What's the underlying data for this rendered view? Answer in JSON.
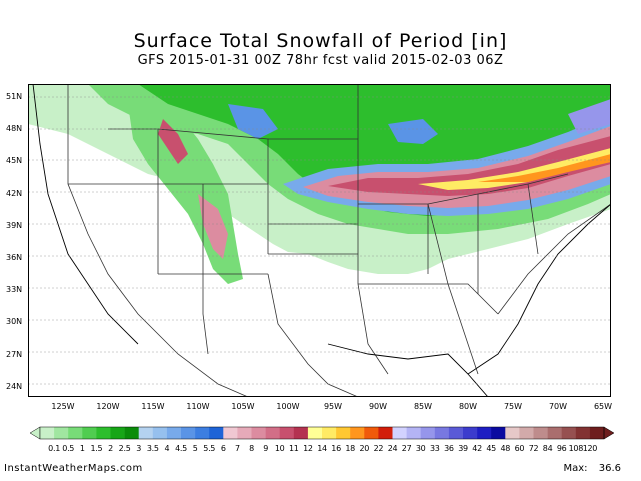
{
  "title": "Surface Total Snowfall of Period [in]",
  "subtitle": "GFS 2015-01-31 00Z 78hr fcst valid 2015-02-03 06Z",
  "lat_labels": [
    "51N",
    "48N",
    "45N",
    "42N",
    "39N",
    "36N",
    "33N",
    "30N",
    "27N",
    "24N"
  ],
  "lon_labels": [
    "125W",
    "120W",
    "115W",
    "110W",
    "105W",
    "100W",
    "95W",
    "90W",
    "85W",
    "80W",
    "75W",
    "70W",
    "65W"
  ],
  "colorbar": {
    "labels": [
      "0.1",
      "0.5",
      "1",
      "1.5",
      "2",
      "2.5",
      "3",
      "3.5",
      "4",
      "4.5",
      "5",
      "5.5",
      "6",
      "7",
      "8",
      "9",
      "10",
      "11",
      "12",
      "14",
      "16",
      "18",
      "20",
      "22",
      "24",
      "27",
      "30",
      "33",
      "36",
      "39",
      "42",
      "45",
      "48",
      "60",
      "72",
      "84",
      "96",
      "108",
      "120"
    ],
    "colors": [
      "#c8f0c8",
      "#a0e6a0",
      "#78dc78",
      "#50cd50",
      "#2dbe2d",
      "#17a617",
      "#0a8c0a",
      "#b4d2f0",
      "#96c0ee",
      "#78aaeb",
      "#5a94e6",
      "#3c7ee1",
      "#1e64d7",
      "#f0c8d2",
      "#e6aab9",
      "#dc8ca0",
      "#d26e87",
      "#c8506e",
      "#b43250",
      "#ffff96",
      "#ffeb64",
      "#ffc832",
      "#ff961e",
      "#f05a0a",
      "#d21e0a",
      "#d2d2ff",
      "#b4b4f5",
      "#9696eb",
      "#7878e1",
      "#5a5ad7",
      "#3c3ccd",
      "#1e1ec3",
      "#0a0aa0",
      "#e6c8c8",
      "#d2aaaa",
      "#be8c8c",
      "#aa6e6e",
      "#965050",
      "#823232",
      "#6e1e1e"
    ]
  },
  "footer": {
    "site": "InstantWeatherMaps.com",
    "max_label": "Max:",
    "max_value": "36.6"
  }
}
